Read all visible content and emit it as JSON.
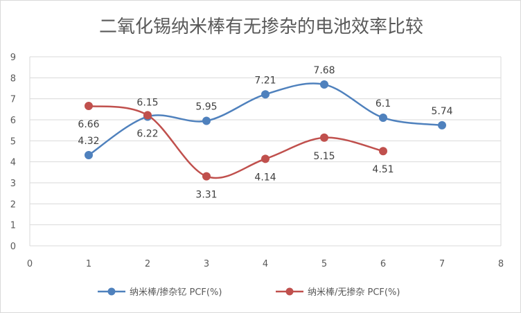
{
  "chart_data": {
    "type": "scatter",
    "title": "二氧化锡纳米棒有无掺杂的电池效率比较",
    "xlim": [
      0,
      8
    ],
    "ylim": [
      0,
      9
    ],
    "x_ticks": [
      "0",
      "1",
      "2",
      "3",
      "4",
      "5",
      "6",
      "7",
      "8"
    ],
    "y_ticks": [
      "0",
      "1",
      "2",
      "3",
      "4",
      "5",
      "6",
      "7",
      "8",
      "9"
    ],
    "grid": "horizontal",
    "smooth_lines": true,
    "legend_position": "bottom",
    "series": [
      {
        "name": "纳米棒/掺杂钇 PCF(%)",
        "color": "#4f81bd",
        "x": [
          1,
          2,
          3,
          4,
          5,
          6,
          7
        ],
        "y": [
          4.32,
          6.15,
          5.95,
          7.21,
          7.68,
          6.1,
          5.74
        ],
        "labels": [
          "4.32",
          "6.15",
          "5.95",
          "7.21",
          "7.68",
          "6.1",
          "5.74"
        ]
      },
      {
        "name": "纳米棒/无掺杂 PCF(%)",
        "color": "#c0504d",
        "x": [
          1,
          2,
          3,
          4,
          5,
          6
        ],
        "y": [
          6.66,
          6.22,
          3.31,
          4.14,
          5.15,
          4.51
        ],
        "labels": [
          "6.66",
          "6.22",
          "3.31",
          "4.14",
          "5.15",
          "4.51"
        ]
      }
    ]
  }
}
